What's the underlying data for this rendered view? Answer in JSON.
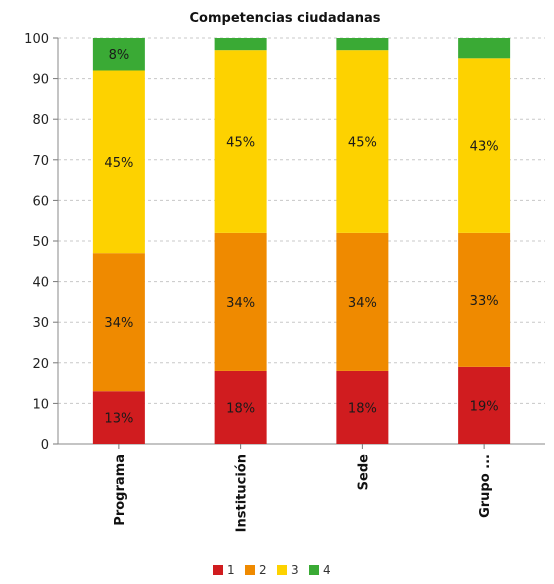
{
  "chart_data": {
    "type": "bar",
    "stacked": true,
    "title": "Competencias ciudadanas",
    "categories": [
      "Programa",
      "Institución",
      "Sede",
      "Grupo ..."
    ],
    "series": [
      {
        "name": "1",
        "color": "#d01c1f",
        "values": [
          13,
          18,
          18,
          19
        ],
        "labels": [
          "13%",
          "18%",
          "18%",
          "19%"
        ]
      },
      {
        "name": "2",
        "color": "#ef8a00",
        "values": [
          34,
          34,
          34,
          33
        ],
        "labels": [
          "34%",
          "34%",
          "34%",
          "33%"
        ]
      },
      {
        "name": "3",
        "color": "#fdd200",
        "values": [
          45,
          45,
          45,
          43
        ],
        "labels": [
          "45%",
          "45%",
          "45%",
          "43%"
        ]
      },
      {
        "name": "4",
        "color": "#3aaa35",
        "values": [
          8,
          3,
          3,
          5
        ],
        "labels": [
          "8%",
          "",
          "",
          ""
        ]
      }
    ],
    "yticks": [
      "0",
      "10",
      "20",
      "30",
      "40",
      "50",
      "60",
      "70",
      "80",
      "90",
      "100"
    ],
    "ylim": [
      0,
      100
    ],
    "grid": true,
    "legend_position": "bottom-center"
  }
}
